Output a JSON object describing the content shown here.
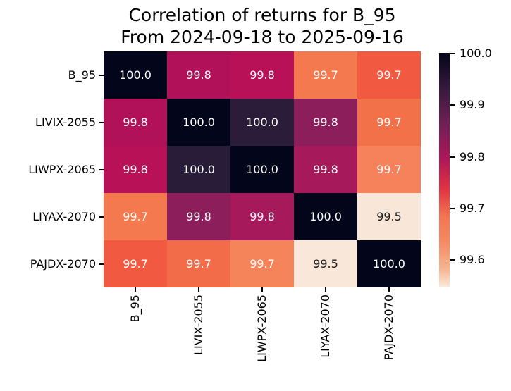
{
  "title": {
    "line1": "Correlation of returns for B_95",
    "line2": "From 2024-09-18 to 2025-09-16"
  },
  "chart_data": {
    "type": "heatmap",
    "title": "Correlation of returns for B_95\nFrom 2024-09-18 to 2025-09-16",
    "categories": [
      "B_95",
      "LIVIX-2055",
      "LIWPX-2065",
      "LIYAX-2070",
      "PAJDX-2070"
    ],
    "matrix": [
      [
        100.0,
        99.8,
        99.8,
        99.7,
        99.7
      ],
      [
        99.8,
        100.0,
        100.0,
        99.8,
        99.7
      ],
      [
        99.8,
        100.0,
        100.0,
        99.8,
        99.7
      ],
      [
        99.7,
        99.8,
        99.8,
        100.0,
        99.5
      ],
      [
        99.7,
        99.7,
        99.7,
        99.5,
        100.0
      ]
    ],
    "value_decimals": 1,
    "cell_colors": [
      [
        "#03051a",
        "#b11159",
        "#b81157",
        "#f5794f",
        "#f15a40"
      ],
      [
        "#b11159",
        "#03051a",
        "#2b1c3a",
        "#8c1e5c",
        "#f37149"
      ],
      [
        "#b81157",
        "#291c38",
        "#03051a",
        "#a61a5c",
        "#f5825a"
      ],
      [
        "#f5794f",
        "#8c1e5c",
        "#a61a5c",
        "#03051a",
        "#f8e7d8"
      ],
      [
        "#f15a40",
        "#f26c49",
        "#f5845b",
        "#f9e8d9",
        "#03051a"
      ]
    ],
    "cell_text_colors": [
      [
        "#ffffff",
        "#ffffff",
        "#ffffff",
        "#ffffff",
        "#ffffff"
      ],
      [
        "#ffffff",
        "#ffffff",
        "#ffffff",
        "#ffffff",
        "#ffffff"
      ],
      [
        "#ffffff",
        "#ffffff",
        "#ffffff",
        "#ffffff",
        "#ffffff"
      ],
      [
        "#ffffff",
        "#ffffff",
        "#ffffff",
        "#ffffff",
        "#1a1a1a"
      ],
      [
        "#ffffff",
        "#ffffff",
        "#ffffff",
        "#1a1a1a",
        "#ffffff"
      ]
    ],
    "colormap": "rocket (dark = high)",
    "colorbar": {
      "ticks": [
        "100.0",
        "99.9",
        "99.8",
        "99.7",
        "99.6"
      ],
      "gradient_stops": [
        {
          "pos": 0,
          "color": "#faebdd"
        },
        {
          "pos": 8,
          "color": "#f6b48f"
        },
        {
          "pos": 20,
          "color": "#f58860"
        },
        {
          "pos": 30,
          "color": "#f37651"
        },
        {
          "pos": 42,
          "color": "#e13342"
        },
        {
          "pos": 55,
          "color": "#ad1759"
        },
        {
          "pos": 70,
          "color": "#701f57"
        },
        {
          "pos": 85,
          "color": "#35193e"
        },
        {
          "pos": 100,
          "color": "#03051a"
        }
      ]
    },
    "axis_ranges": {
      "colorbar_min_label": "99.6",
      "colorbar_max_label": "100.0"
    },
    "legend_position": "right-colorbar",
    "grid": false
  }
}
